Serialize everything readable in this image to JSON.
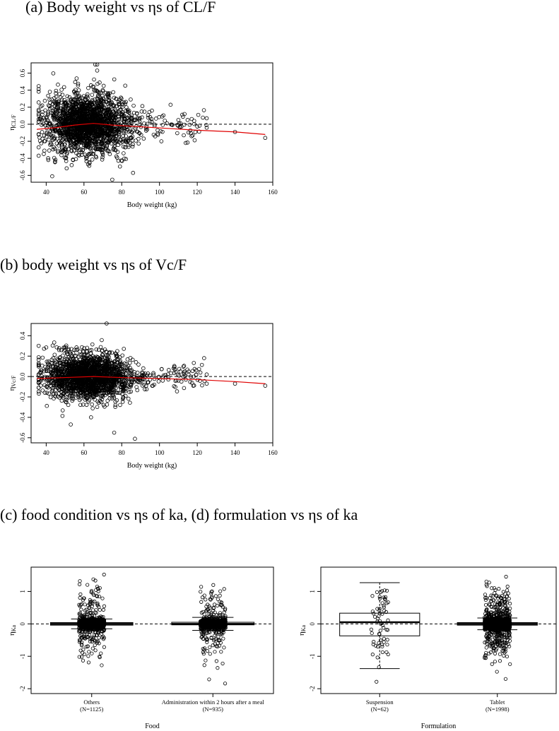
{
  "titles": {
    "a": "(a) Body weight vs ηs of CL/F",
    "b": "(b) body weight vs ηs of Vc/F",
    "cd": "(c) food condition vs ηs of ka, (d) formulation vs ηs of ka"
  },
  "chart_data": [
    {
      "id": "a",
      "type": "scatter",
      "xlabel": "Body weight (kg)",
      "ylabel_symbol": "η",
      "ylabel_sub": "CL/F",
      "xlim": [
        32,
        160
      ],
      "ylim": [
        -0.68,
        0.72
      ],
      "xticks": [
        40,
        60,
        80,
        100,
        120,
        140,
        160
      ],
      "yticks": [
        -0.6,
        -0.4,
        -0.2,
        0.0,
        0.2,
        0.4,
        0.6
      ],
      "ytick_labels": [
        "-0.6",
        "-0.4",
        "-0.2",
        "0.0",
        "0.2",
        "0.4",
        "0.6"
      ],
      "point_count": 2060,
      "reference_line": 0,
      "smooth_color": "#e00000",
      "smooth": [
        [
          35,
          -0.06
        ],
        [
          45,
          -0.04
        ],
        [
          55,
          -0.01
        ],
        [
          65,
          0.01
        ],
        [
          75,
          -0.01
        ],
        [
          90,
          -0.03
        ],
        [
          105,
          -0.05
        ],
        [
          120,
          -0.07
        ],
        [
          140,
          -0.09
        ],
        [
          156,
          -0.12
        ]
      ],
      "outliers": [
        [
          66,
          0.7
        ],
        [
          67,
          0.7
        ],
        [
          67,
          0.63
        ],
        [
          75,
          -0.65
        ],
        [
          86,
          -0.57
        ],
        [
          140,
          -0.09
        ],
        [
          156,
          -0.16
        ],
        [
          125,
          0.07
        ],
        [
          125,
          -0.04
        ],
        [
          117,
          -0.14
        ],
        [
          110,
          0.05
        ],
        [
          104,
          0.01
        ],
        [
          99,
          -0.07
        ],
        [
          96,
          0.16
        ],
        [
          101,
          -0.2
        ]
      ]
    },
    {
      "id": "b",
      "type": "scatter",
      "xlabel": "Body weight (kg)",
      "ylabel_symbol": "η",
      "ylabel_sub": "Vc/F",
      "xlim": [
        32,
        160
      ],
      "ylim": [
        -0.65,
        0.52
      ],
      "xticks": [
        40,
        60,
        80,
        100,
        120,
        140,
        160
      ],
      "yticks": [
        -0.6,
        -0.4,
        -0.2,
        0.0,
        0.2,
        0.4
      ],
      "ytick_labels": [
        "-0.6",
        "-0.4",
        "-0.2",
        "0.0",
        "0.2",
        "0.4"
      ],
      "point_count": 2060,
      "reference_line": 0,
      "smooth_color": "#e00000",
      "smooth": [
        [
          35,
          -0.02
        ],
        [
          50,
          -0.01
        ],
        [
          65,
          0.0
        ],
        [
          80,
          -0.01
        ],
        [
          100,
          -0.02
        ],
        [
          120,
          -0.03
        ],
        [
          140,
          -0.05
        ],
        [
          156,
          -0.07
        ]
      ],
      "outliers": [
        [
          72,
          0.52
        ],
        [
          76,
          -0.55
        ],
        [
          87,
          -0.61
        ],
        [
          53,
          -0.47
        ],
        [
          140,
          -0.07
        ],
        [
          156,
          -0.09
        ],
        [
          125,
          0.02
        ],
        [
          125,
          -0.07
        ],
        [
          113,
          0.04
        ],
        [
          110,
          -0.04
        ]
      ]
    },
    {
      "id": "c",
      "type": "box",
      "xlabel": "Food",
      "ylabel_symbol": "η",
      "ylabel_sub": "Ka",
      "ylim": [
        -2.15,
        1.75
      ],
      "yticks": [
        -2,
        -1,
        0,
        1
      ],
      "ytick_labels": [
        "-2",
        "-1",
        "0",
        "1"
      ],
      "reference_line": 0,
      "categories": [
        {
          "label": "Others",
          "n": "(N=1125)",
          "count": 1125,
          "q1": -0.04,
          "median": 0.0,
          "q3": 0.04,
          "whisker_low": -0.15,
          "whisker_high": 0.15,
          "y_min": -1.9,
          "y_max": 1.6
        },
        {
          "label": "Administration within 2 hours after a meal",
          "n": "(N=935)",
          "count": 935,
          "q1": -0.03,
          "median": 0.0,
          "q3": 0.05,
          "whisker_low": -0.2,
          "whisker_high": 0.2,
          "y_min": -2.1,
          "y_max": 1.2
        }
      ]
    },
    {
      "id": "d",
      "type": "box",
      "xlabel": "Formulation",
      "ylabel_symbol": "η",
      "ylabel_sub": "Ka",
      "ylim": [
        -2.15,
        1.75
      ],
      "yticks": [
        -2,
        -1,
        0,
        1
      ],
      "ytick_labels": [
        "-2",
        "-1",
        "0",
        "1"
      ],
      "reference_line": 0,
      "categories": [
        {
          "label": "Suspension",
          "n": "(N=62)",
          "count": 62,
          "q1": -0.37,
          "median": 0.05,
          "q3": 0.33,
          "whisker_low": -1.38,
          "whisker_high": 1.27,
          "y_min": -1.85,
          "y_max": 1.27
        },
        {
          "label": "Tablet",
          "n": "(N=1998)",
          "count": 1998,
          "q1": -0.04,
          "median": 0.0,
          "q3": 0.04,
          "whisker_low": -0.18,
          "whisker_high": 0.18,
          "y_min": -2.1,
          "y_max": 1.6
        }
      ]
    }
  ]
}
